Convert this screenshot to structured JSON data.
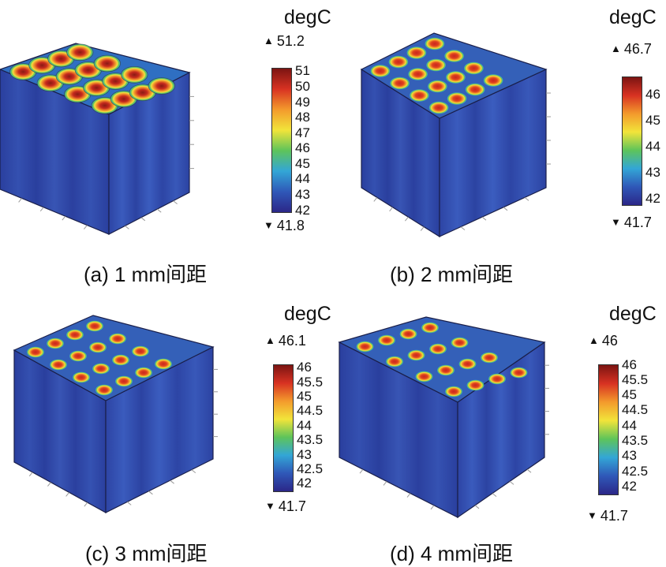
{
  "colorbar": {
    "gradient": [
      "#2b2788",
      "#2f58b8",
      "#33a6d6",
      "#5ec45a",
      "#f2e43a",
      "#f39a2c",
      "#d83222",
      "#7c1412"
    ]
  },
  "panels": [
    {
      "id": "a",
      "caption": "(a) 1 mm间距",
      "unit": "degC",
      "max_label": "51.2",
      "min_label": "41.8",
      "max_symbol": "▲",
      "min_symbol": "▼",
      "ticks": [
        "51",
        "50",
        "49",
        "48",
        "47",
        "46",
        "45",
        "44",
        "43",
        "42"
      ],
      "tick_min": 42,
      "tick_max": 51,
      "range": [
        41.8,
        51.2
      ]
    },
    {
      "id": "b",
      "caption": "(b) 2 mm间距",
      "unit": "degC",
      "max_label": "46.7",
      "min_label": "41.7",
      "max_symbol": "▲",
      "min_symbol": "▼",
      "ticks": [
        "46",
        "45",
        "44",
        "43",
        "42"
      ],
      "tick_min": 42,
      "tick_max": 46,
      "range": [
        41.7,
        46.7
      ]
    },
    {
      "id": "c",
      "caption": "(c) 3 mm间距",
      "unit": "degC",
      "max_label": "46.1",
      "min_label": "41.7",
      "max_symbol": "▲",
      "min_symbol": "▼",
      "ticks": [
        "46",
        "45.5",
        "45",
        "44.5",
        "44",
        "43.5",
        "43",
        "42.5",
        "42"
      ],
      "tick_min": 42,
      "tick_max": 46,
      "range": [
        41.7,
        46.1
      ]
    },
    {
      "id": "d",
      "caption": "(d) 4 mm间距",
      "unit": "degC",
      "max_label": "46",
      "min_label": "41.7",
      "max_symbol": "▲",
      "min_symbol": "▼",
      "ticks": [
        "46",
        "45.5",
        "45",
        "44.5",
        "44",
        "43.5",
        "43",
        "42.5",
        "42"
      ],
      "tick_min": 42,
      "tick_max": 46,
      "range": [
        41.7,
        46
      ]
    }
  ]
}
